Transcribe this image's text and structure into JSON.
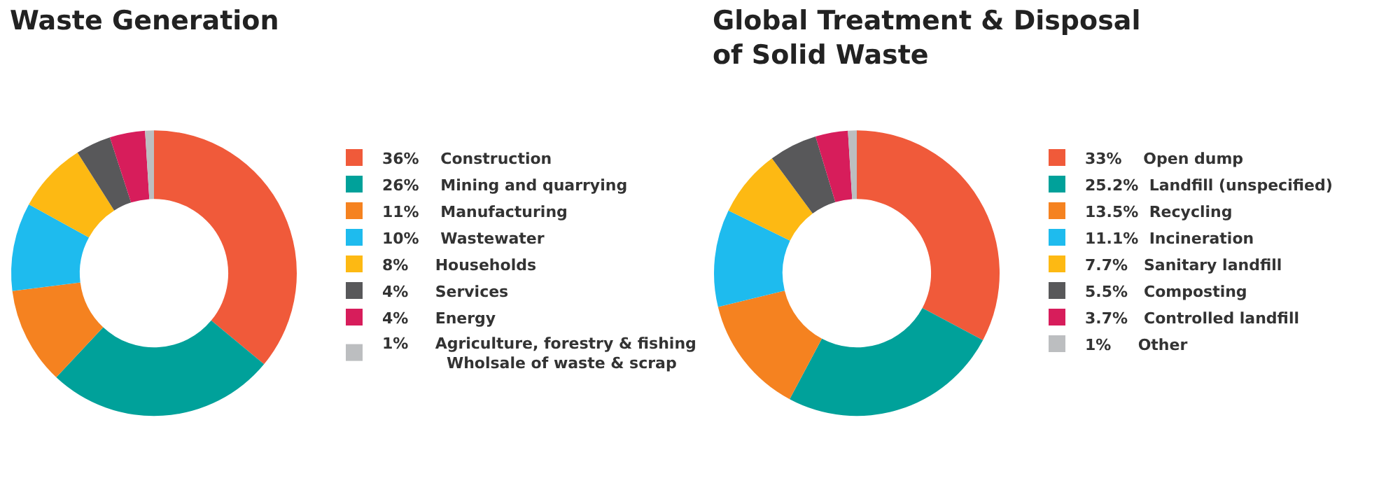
{
  "chart_data": [
    {
      "type": "donut",
      "title": "Waste Generation",
      "legend": "right",
      "categories": [
        "Construction",
        "Mining and quarrying",
        "Manufacturing",
        "Wastewater",
        "Households",
        "Services",
        "Energy",
        "Agriculture, forestry & fishing\nWholsale of waste & scrap"
      ],
      "values": [
        36,
        26,
        11,
        10,
        8,
        4,
        4,
        1
      ],
      "value_labels": [
        "36%",
        "26%",
        "11%",
        "10%",
        "8%",
        "4%",
        "4%",
        "1%"
      ],
      "colors": [
        "#f05a3a",
        "#00a19a",
        "#f58220",
        "#1ebbee",
        "#fdb913",
        "#58585a",
        "#d71d5b",
        "#bcbec0"
      ]
    },
    {
      "type": "donut",
      "title": "Global Treatment & Disposal\nof Solid Waste",
      "legend": "right",
      "categories": [
        "Open dump",
        "Landfill (unspecified)",
        "Recycling",
        "Incineration",
        "Sanitary landfill",
        "Composting",
        "Controlled landfill",
        "Other"
      ],
      "values": [
        33,
        25.2,
        13.5,
        11.1,
        7.7,
        5.5,
        3.7,
        1
      ],
      "value_labels": [
        "33%",
        "25.2%",
        "13.5%",
        "11.1%",
        "7.7%",
        "5.5%",
        "3.7%",
        "1%"
      ],
      "colors": [
        "#f05a3a",
        "#00a19a",
        "#f58220",
        "#1ebbee",
        "#fdb913",
        "#58585a",
        "#d71d5b",
        "#bcbec0"
      ]
    }
  ]
}
